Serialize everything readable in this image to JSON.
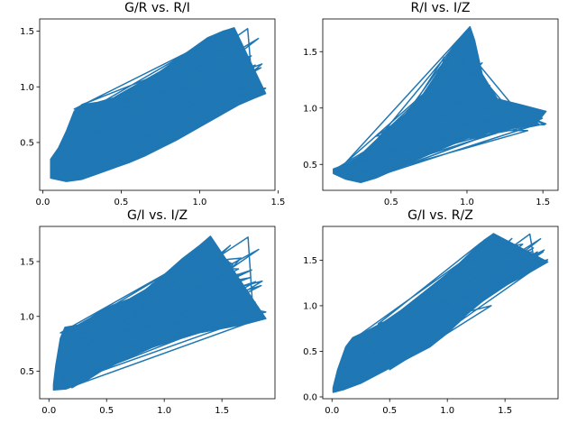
{
  "figure": {
    "background": "#ffffff",
    "line_color": "#1f77b4"
  },
  "chart_data": [
    {
      "type": "line",
      "title": "G/R vs. R/I",
      "xlabel": "",
      "ylabel": "",
      "xlim": [
        -0.02,
        1.48
      ],
      "ylim": [
        0.07,
        1.61
      ],
      "xticks": [
        0.0,
        0.5,
        1.0,
        1.5
      ],
      "xtick_labels": [
        "0.0",
        "0.5",
        "1.0",
        "1.5"
      ],
      "yticks": [
        0.5,
        1.0,
        1.5
      ],
      "ytick_labels": [
        "0.5",
        "1.0",
        "1.5"
      ],
      "grid": false,
      "envelope": {
        "upper": [
          [
            0.05,
            0.35
          ],
          [
            0.1,
            0.45
          ],
          [
            0.15,
            0.6
          ],
          [
            0.2,
            0.78
          ],
          [
            0.25,
            0.84
          ],
          [
            0.35,
            0.86
          ],
          [
            0.45,
            0.9
          ],
          [
            0.55,
            0.98
          ],
          [
            0.65,
            1.06
          ],
          [
            0.75,
            1.14
          ],
          [
            0.85,
            1.24
          ],
          [
            0.95,
            1.34
          ],
          [
            1.05,
            1.44
          ],
          [
            1.1,
            1.47
          ],
          [
            1.15,
            1.5
          ],
          [
            1.22,
            1.53
          ]
        ],
        "lower": [
          [
            0.05,
            0.18
          ],
          [
            0.15,
            0.15
          ],
          [
            0.25,
            0.17
          ],
          [
            0.35,
            0.22
          ],
          [
            0.45,
            0.27
          ],
          [
            0.55,
            0.32
          ],
          [
            0.65,
            0.38
          ],
          [
            0.75,
            0.45
          ],
          [
            0.85,
            0.52
          ],
          [
            0.95,
            0.6
          ],
          [
            1.05,
            0.68
          ],
          [
            1.15,
            0.76
          ],
          [
            1.25,
            0.84
          ],
          [
            1.35,
            0.9
          ],
          [
            1.42,
            0.94
          ]
        ]
      },
      "series": [
        {
          "values": [
            [
              0.05,
              0.2
            ],
            [
              0.95,
              1.3
            ],
            [
              0.1,
              0.3
            ],
            [
              1.2,
              1.52
            ],
            [
              0.15,
              0.2
            ],
            [
              1.4,
              0.94
            ],
            [
              0.2,
              0.8
            ],
            [
              1.05,
              1.4
            ],
            [
              0.3,
              0.3
            ],
            [
              1.3,
              0.88
            ],
            [
              0.25,
              0.84
            ],
            [
              0.9,
              1.2
            ],
            [
              0.2,
              0.18
            ],
            [
              1.0,
              0.7
            ],
            [
              0.4,
              0.88
            ],
            [
              1.1,
              1.45
            ],
            [
              0.35,
              0.25
            ],
            [
              1.35,
              1.05
            ],
            [
              0.6,
              0.95
            ],
            [
              0.08,
              0.35
            ],
            [
              1.25,
              1.1
            ],
            [
              0.5,
              0.4
            ],
            [
              0.7,
              1.05
            ]
          ]
        }
      ]
    },
    {
      "type": "line",
      "title": "R/I vs. I/Z",
      "xlabel": "",
      "ylabel": "",
      "xlim": [
        0.05,
        1.6
      ],
      "ylim": [
        0.27,
        1.79
      ],
      "xticks": [
        0.5,
        1.0,
        1.5
      ],
      "xtick_labels": [
        "0.5",
        "1.0",
        "1.5"
      ],
      "yticks": [
        0.5,
        1.0,
        1.5
      ],
      "ytick_labels": [
        "0.5",
        "1.0",
        "1.5"
      ],
      "grid": false,
      "envelope": {
        "upper": [
          [
            0.12,
            0.46
          ],
          [
            0.2,
            0.5
          ],
          [
            0.3,
            0.58
          ],
          [
            0.4,
            0.7
          ],
          [
            0.5,
            0.84
          ],
          [
            0.6,
            0.95
          ],
          [
            0.7,
            1.1
          ],
          [
            0.8,
            1.3
          ],
          [
            0.85,
            1.42
          ],
          [
            0.92,
            1.55
          ],
          [
            0.98,
            1.66
          ],
          [
            1.02,
            1.72
          ],
          [
            1.05,
            1.6
          ],
          [
            1.1,
            1.3
          ],
          [
            1.2,
            1.08
          ],
          [
            1.35,
            1.03
          ],
          [
            1.52,
            0.97
          ]
        ],
        "lower": [
          [
            0.12,
            0.42
          ],
          [
            0.2,
            0.37
          ],
          [
            0.3,
            0.34
          ],
          [
            0.4,
            0.38
          ],
          [
            0.5,
            0.44
          ],
          [
            0.6,
            0.5
          ],
          [
            0.7,
            0.56
          ],
          [
            0.8,
            0.62
          ],
          [
            0.9,
            0.68
          ],
          [
            1.0,
            0.74
          ],
          [
            1.1,
            0.78
          ],
          [
            1.2,
            0.8
          ],
          [
            1.35,
            0.83
          ],
          [
            1.45,
            0.85
          ]
        ]
      },
      "series": [
        {
          "values": [
            [
              0.15,
              0.44
            ],
            [
              1.02,
              1.72
            ],
            [
              0.2,
              0.38
            ],
            [
              1.52,
              0.97
            ],
            [
              0.4,
              0.75
            ],
            [
              1.1,
              1.4
            ],
            [
              0.3,
              0.35
            ],
            [
              1.45,
              0.85
            ],
            [
              0.6,
              0.95
            ],
            [
              0.95,
              1.6
            ],
            [
              0.5,
              0.45
            ],
            [
              1.3,
              0.9
            ],
            [
              0.25,
              0.5
            ],
            [
              1.15,
              1.2
            ],
            [
              0.7,
              0.56
            ],
            [
              0.85,
              1.45
            ],
            [
              0.35,
              0.4
            ],
            [
              1.4,
              0.8
            ],
            [
              0.55,
              0.8
            ],
            [
              1.0,
              1.1
            ]
          ]
        }
      ]
    },
    {
      "type": "line",
      "title": "G/I vs. I/Z",
      "xlabel": "",
      "ylabel": "",
      "xlim": [
        -0.08,
        1.96
      ],
      "ylim": [
        0.25,
        1.82
      ],
      "xticks": [
        0.0,
        0.5,
        1.0,
        1.5
      ],
      "xtick_labels": [
        "0.0",
        "0.5",
        "1.0",
        "1.5"
      ],
      "yticks": [
        0.5,
        1.0,
        1.5
      ],
      "ytick_labels": [
        "0.5",
        "1.0",
        "1.5"
      ],
      "grid": false,
      "envelope": {
        "upper": [
          [
            0.04,
            0.38
          ],
          [
            0.06,
            0.55
          ],
          [
            0.1,
            0.8
          ],
          [
            0.14,
            0.9
          ],
          [
            0.25,
            0.92
          ],
          [
            0.35,
            0.98
          ],
          [
            0.45,
            1.05
          ],
          [
            0.55,
            1.1
          ],
          [
            0.7,
            1.16
          ],
          [
            0.85,
            1.25
          ],
          [
            1.0,
            1.38
          ],
          [
            1.15,
            1.52
          ],
          [
            1.3,
            1.64
          ],
          [
            1.4,
            1.73
          ]
        ],
        "lower": [
          [
            0.04,
            0.33
          ],
          [
            0.15,
            0.34
          ],
          [
            0.3,
            0.4
          ],
          [
            0.45,
            0.5
          ],
          [
            0.6,
            0.58
          ],
          [
            0.75,
            0.65
          ],
          [
            0.9,
            0.72
          ],
          [
            1.05,
            0.78
          ],
          [
            1.2,
            0.83
          ],
          [
            1.35,
            0.86
          ],
          [
            1.5,
            0.89
          ],
          [
            1.7,
            0.93
          ],
          [
            1.88,
            0.98
          ]
        ]
      },
      "series": [
        {
          "values": [
            [
              0.05,
              0.35
            ],
            [
              1.4,
              1.72
            ],
            [
              0.08,
              0.6
            ],
            [
              1.88,
              0.98
            ],
            [
              0.1,
              0.85
            ],
            [
              1.2,
              1.5
            ],
            [
              0.2,
              0.35
            ],
            [
              1.45,
              1.12
            ],
            [
              0.4,
              1.0
            ],
            [
              1.35,
              1.6
            ],
            [
              0.3,
              0.4
            ],
            [
              1.7,
              0.93
            ],
            [
              0.6,
              1.1
            ],
            [
              1.05,
              0.78
            ],
            [
              0.15,
              0.88
            ],
            [
              1.42,
              1.3
            ],
            [
              0.5,
              0.52
            ],
            [
              0.9,
              1.3
            ],
            [
              0.06,
              0.45
            ],
            [
              1.3,
              0.85
            ]
          ]
        }
      ]
    },
    {
      "type": "line",
      "title": "G/I vs. R/Z",
      "xlabel": "",
      "ylabel": "",
      "xlim": [
        -0.08,
        1.96
      ],
      "ylim": [
        -0.02,
        1.87
      ],
      "xticks": [
        0.0,
        0.5,
        1.0,
        1.5
      ],
      "xtick_labels": [
        "0.0",
        "0.5",
        "1.0",
        "1.5"
      ],
      "yticks": [
        0.0,
        0.5,
        1.0,
        1.5
      ],
      "ytick_labels": [
        "0.0",
        "0.5",
        "1.0",
        "1.5"
      ],
      "grid": false,
      "envelope": {
        "upper": [
          [
            0.01,
            0.1
          ],
          [
            0.05,
            0.3
          ],
          [
            0.12,
            0.55
          ],
          [
            0.18,
            0.65
          ],
          [
            0.3,
            0.72
          ],
          [
            0.45,
            0.82
          ],
          [
            0.6,
            0.95
          ],
          [
            0.75,
            1.1
          ],
          [
            0.9,
            1.25
          ],
          [
            1.05,
            1.4
          ],
          [
            1.2,
            1.58
          ],
          [
            1.32,
            1.72
          ],
          [
            1.4,
            1.79
          ]
        ],
        "lower": [
          [
            0.01,
            0.05
          ],
          [
            0.1,
            0.08
          ],
          [
            0.25,
            0.15
          ],
          [
            0.4,
            0.25
          ],
          [
            0.55,
            0.35
          ],
          [
            0.7,
            0.45
          ],
          [
            0.85,
            0.55
          ],
          [
            1.0,
            0.7
          ],
          [
            1.1,
            0.82
          ],
          [
            1.2,
            0.95
          ],
          [
            1.35,
            1.1
          ],
          [
            1.5,
            1.22
          ],
          [
            1.65,
            1.32
          ],
          [
            1.87,
            1.48
          ]
        ]
      },
      "series": [
        {
          "values": [
            [
              0.02,
              0.06
            ],
            [
              1.4,
              1.79
            ],
            [
              0.05,
              0.25
            ],
            [
              1.87,
              1.48
            ],
            [
              0.15,
              0.6
            ],
            [
              1.2,
              1.55
            ],
            [
              0.1,
              0.08
            ],
            [
              1.45,
              1.2
            ],
            [
              0.4,
              0.8
            ],
            [
              1.3,
              1.7
            ],
            [
              0.3,
              0.2
            ],
            [
              1.6,
              1.3
            ],
            [
              0.6,
              0.9
            ],
            [
              1.1,
              0.82
            ],
            [
              0.2,
              0.62
            ],
            [
              1.38,
              1.0
            ],
            [
              0.5,
              0.3
            ],
            [
              1.0,
              1.3
            ]
          ]
        }
      ]
    }
  ]
}
